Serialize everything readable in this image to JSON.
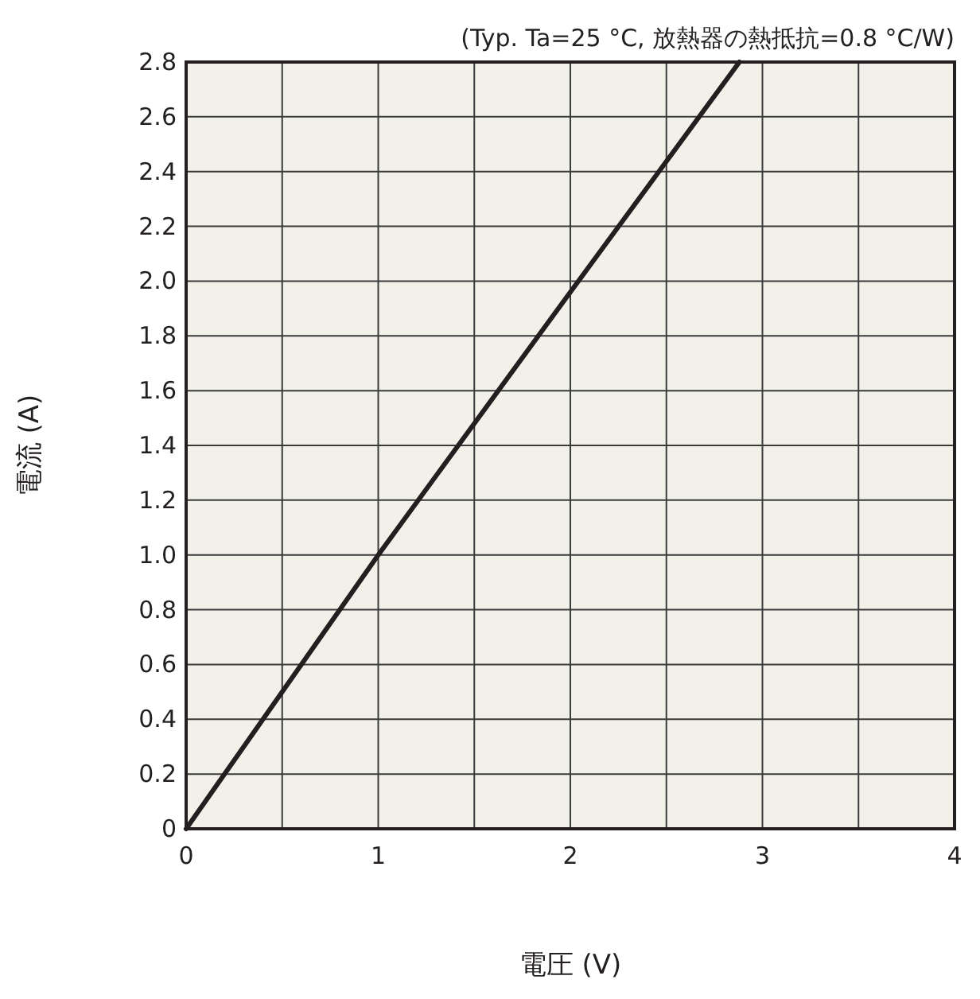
{
  "chart_data": {
    "type": "line",
    "title": "(Typ. Ta=25 °C, 放熱器の熱抵抗=0.8 °C/W)",
    "xlabel": "電圧 (V)",
    "ylabel": "電流 (A)",
    "x": [
      0,
      1,
      2,
      2.88
    ],
    "series": [
      {
        "color": "#231f20",
        "values": [
          0,
          1.0,
          1.96,
          2.8
        ]
      }
    ],
    "xlim": [
      0,
      4
    ],
    "ylim": [
      0,
      2.8
    ],
    "xticks": [
      0,
      {
        "value": 0.5,
        "label": null
      },
      1,
      {
        "value": 1.5,
        "label": null
      },
      2,
      {
        "value": 2.5,
        "label": null
      },
      3,
      {
        "value": 3.5,
        "label": null
      },
      4
    ],
    "yticks": [
      0,
      0.2,
      0.4,
      0.6,
      0.8,
      {
        "value": 1,
        "label": "1.0"
      },
      1.2,
      1.4,
      1.6,
      1.8,
      {
        "value": 2,
        "label": "2.0"
      },
      2.2,
      2.4,
      2.6,
      2.8
    ],
    "grid": true
  }
}
